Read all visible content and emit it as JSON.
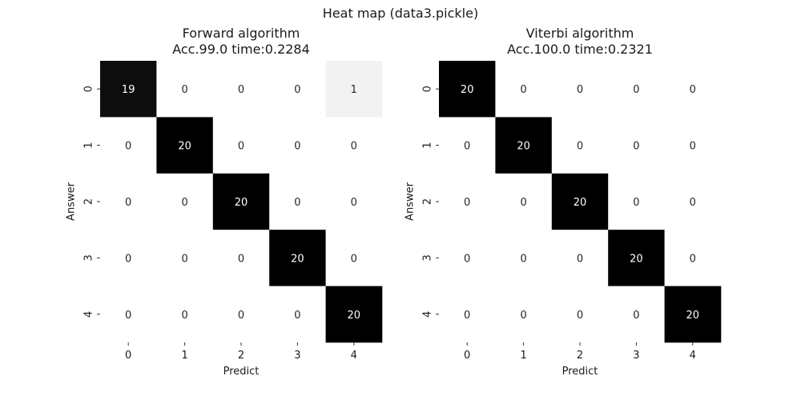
{
  "figure": {
    "title": "Heat map (data3.pickle)"
  },
  "colors": {
    "low": "#ffffff",
    "high": "#000000",
    "text_on_dark": "#ffffff",
    "text_on_light": "#262626",
    "axis_text": "#1a1a1a"
  },
  "chart_data": [
    {
      "type": "heatmap",
      "title": [
        "Forward algorithm",
        "Acc.99.0 time:0.2284"
      ],
      "xlabel": "Predict",
      "ylabel": "Answer",
      "x_categories": [
        "0",
        "1",
        "2",
        "3",
        "4"
      ],
      "y_categories": [
        "0",
        "1",
        "2",
        "3",
        "4"
      ],
      "values": [
        [
          19,
          0,
          0,
          0,
          1
        ],
        [
          0,
          20,
          0,
          0,
          0
        ],
        [
          0,
          0,
          20,
          0,
          0
        ],
        [
          0,
          0,
          0,
          20,
          0
        ],
        [
          0,
          0,
          0,
          0,
          20
        ]
      ],
      "vmin": 0,
      "vmax": 20,
      "annotated": true,
      "colorbar": false
    },
    {
      "type": "heatmap",
      "title": [
        "Viterbi algorithm",
        "Acc.100.0 time:0.2321"
      ],
      "xlabel": "Predict",
      "ylabel": "Answer",
      "x_categories": [
        "0",
        "1",
        "2",
        "3",
        "4"
      ],
      "y_categories": [
        "0",
        "1",
        "2",
        "3",
        "4"
      ],
      "values": [
        [
          20,
          0,
          0,
          0,
          0
        ],
        [
          0,
          20,
          0,
          0,
          0
        ],
        [
          0,
          0,
          20,
          0,
          0
        ],
        [
          0,
          0,
          0,
          20,
          0
        ],
        [
          0,
          0,
          0,
          0,
          20
        ]
      ],
      "vmin": 0,
      "vmax": 20,
      "annotated": true,
      "colorbar": false
    }
  ]
}
